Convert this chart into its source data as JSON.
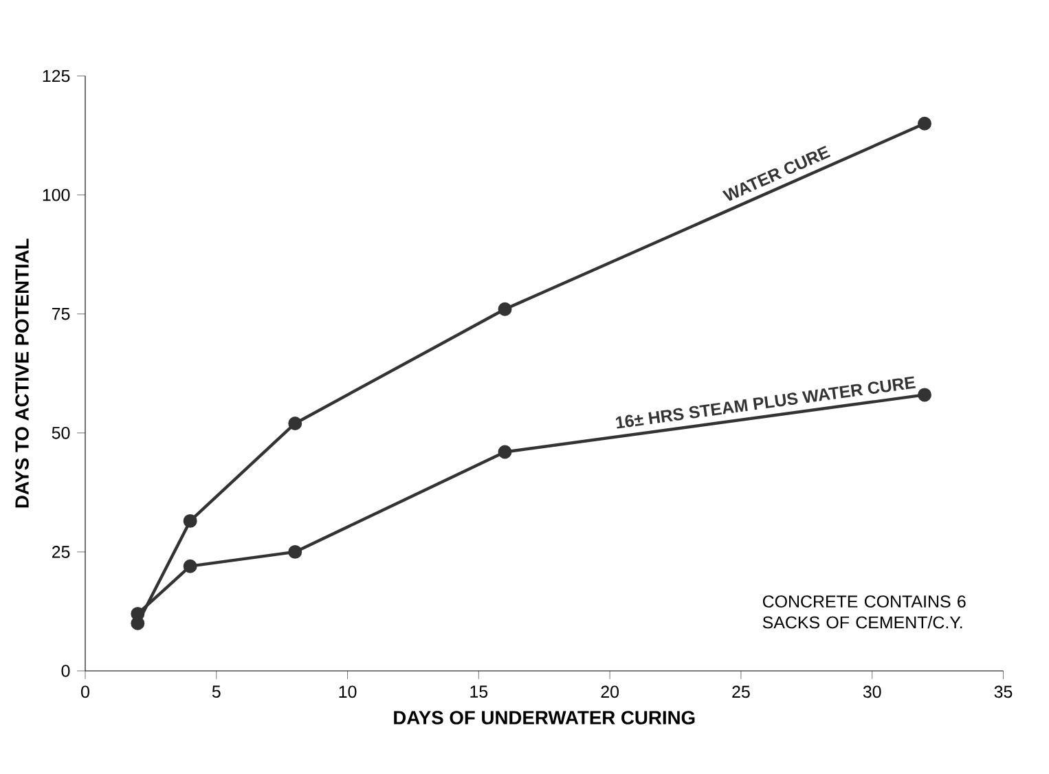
{
  "chart_data": {
    "type": "line",
    "xlabel": "DAYS OF UNDERWATER CURING",
    "ylabel": "DAYS TO ACTIVE POTENTIAL",
    "x": [
      2,
      4,
      8,
      16,
      32
    ],
    "series": [
      {
        "name": "WATER CURE",
        "color": "#333333",
        "values": [
          10,
          31.5,
          52,
          76,
          115
        ]
      },
      {
        "name": "16± HRS STEAM PLUS WATER CURE",
        "color": "#333333",
        "values": [
          12,
          22,
          25,
          46,
          58
        ]
      }
    ],
    "annotations": [
      "CONCRETE CONTAINS 6 SACKS OF CEMENT/C.Y."
    ],
    "xlim": [
      0,
      35
    ],
    "ylim": [
      0,
      125
    ],
    "xticks": [
      0,
      5,
      10,
      15,
      20,
      25,
      30,
      35
    ],
    "yticks": [
      0,
      25,
      50,
      75,
      100,
      125
    ],
    "marker": "circle",
    "line_style": "solid",
    "grid": false,
    "legend": false
  }
}
